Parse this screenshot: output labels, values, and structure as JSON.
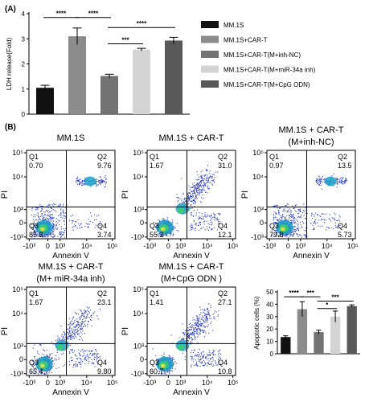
{
  "panel_a_label": "(A)",
  "panel_b_label": "(B)",
  "chart_data": [
    {
      "type": "bar",
      "ylabel": "LDH release(Fold)",
      "ylim": [
        0,
        4
      ],
      "yticks": [
        "0",
        "1",
        "2",
        "3",
        "4"
      ],
      "categories": [
        "MM.1S",
        "MM.1S+CAR-T",
        "MM.1S+CAR-T(M+inh-NC)",
        "MM.1S+CAR-T(M+miR-34a inh)",
        "MM.1S+CAR-T(M+CpG ODN)"
      ],
      "values": [
        1.05,
        3.1,
        1.52,
        2.57,
        2.93
      ],
      "errors": [
        0.1,
        0.33,
        0.07,
        0.05,
        0.13
      ],
      "colors": [
        "#111111",
        "#8c8c8c",
        "#737373",
        "#d4d4d4",
        "#595959"
      ],
      "significance": [
        {
          "from": 0,
          "to": 1,
          "y": 3.85,
          "label": "****"
        },
        {
          "from": 1,
          "to": 2,
          "y": 3.85,
          "label": "****"
        },
        {
          "from": 2,
          "to": 3,
          "y": 2.8,
          "label": "***"
        },
        {
          "from": 2,
          "to": 4,
          "y": 3.45,
          "label": "****"
        }
      ],
      "legend": "right"
    },
    {
      "type": "bar",
      "ylabel": "Apoptotic cells (%)",
      "ylim": [
        0,
        50
      ],
      "yticks": [
        "0",
        "10",
        "20",
        "30",
        "40",
        "50"
      ],
      "values": [
        13.5,
        36,
        17.5,
        30,
        38.5
      ],
      "errors": [
        1.0,
        6.0,
        1.5,
        4.5,
        1.0
      ],
      "colors": [
        "#111111",
        "#8c8c8c",
        "#737373",
        "#d4d4d4",
        "#595959"
      ],
      "significance": [
        {
          "from": 0,
          "to": 1,
          "y": 46,
          "label": "****"
        },
        {
          "from": 1,
          "to": 2,
          "y": 46,
          "label": "***"
        },
        {
          "from": 2,
          "to": 3,
          "y": 36.5,
          "label": "*"
        },
        {
          "from": 2,
          "to": 4,
          "y": 42.5,
          "label": "***"
        }
      ]
    }
  ],
  "flow": {
    "xlabel": "Annexin V",
    "ylabel": "PI",
    "yticks": [
      "10⁵",
      "10⁴",
      "10³",
      "0",
      "-10³"
    ],
    "xticks": [
      "-10³",
      "0",
      "10³",
      "10⁴",
      "10⁵"
    ],
    "plots": [
      {
        "title": [
          "MM.1S"
        ],
        "q1": "0.70",
        "q2": "9.76",
        "q3": "85.8",
        "q4": "3.74",
        "profile": "ctrl"
      },
      {
        "title": [
          "MM.1S + CAR-T"
        ],
        "q1": "1.67",
        "q2": "31.0",
        "q3": "55.2",
        "q4": "12.1",
        "profile": "high"
      },
      {
        "title": [
          "MM.1S + CAR-T",
          "(M+inh-NC)"
        ],
        "q1": "0.97",
        "q2": "13.5",
        "q3": "79.8",
        "q4": "5.73",
        "profile": "ctrl"
      },
      {
        "title": [
          "MM.1S + CAR-T",
          "(M+ miR-34a inh)"
        ],
        "q1": "1.67",
        "q2": "23.1",
        "q3": "65.4",
        "q4": "9.80",
        "profile": "high"
      },
      {
        "title": [
          "MM.1S + CAR-T",
          "(M+CpG ODN )"
        ],
        "q1": "1.41",
        "q2": "27.1",
        "q3": "60.7",
        "q4": "10.8",
        "profile": "high"
      }
    ]
  },
  "colors": {
    "dot": "#2b3dbd",
    "dense1": "#1fa3c6",
    "dense2": "#3ccf6a",
    "dense3": "#e6e14a"
  }
}
